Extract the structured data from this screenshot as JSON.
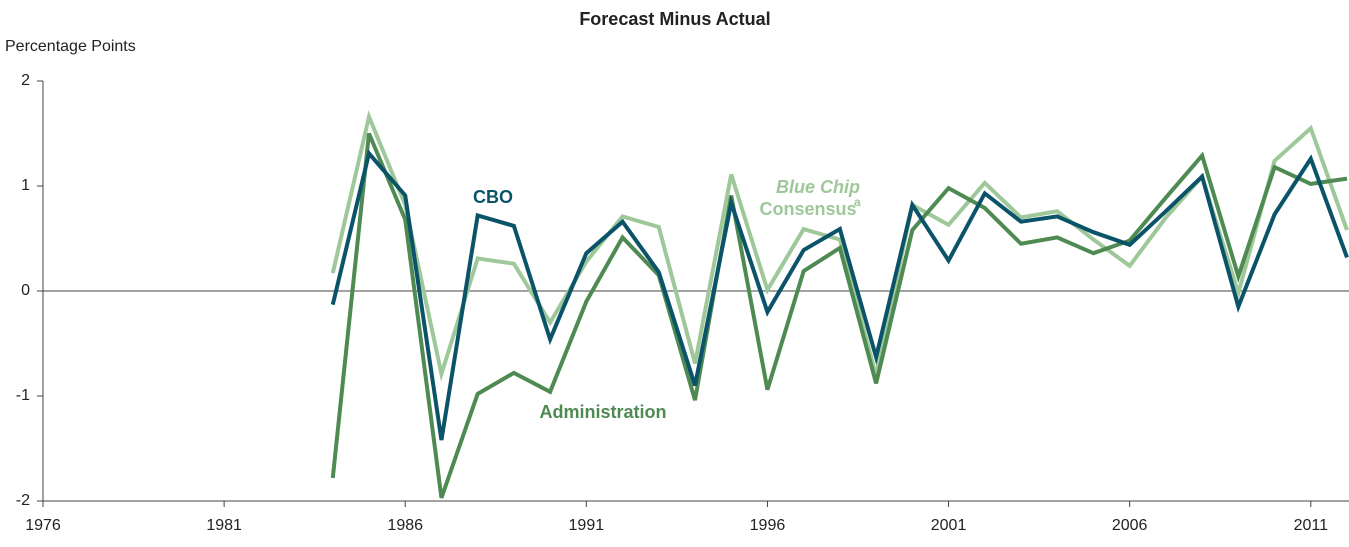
{
  "chart_data": {
    "type": "line",
    "title": "Forecast Minus Actual",
    "y_label": "Percentage Points",
    "x": [
      1984,
      1985,
      1986,
      1987,
      1988,
      1989,
      1990,
      1991,
      1992,
      1993,
      1994,
      1995,
      1996,
      1997,
      1998,
      1999,
      2000,
      2001,
      2002,
      2003,
      2004,
      2005,
      2006,
      2007,
      2008,
      2009,
      2010,
      2011,
      2012
    ],
    "series": [
      {
        "name": "CBO",
        "color": "#0b5369",
        "values": [
          -0.13,
          1.31,
          0.91,
          -1.42,
          0.72,
          0.62,
          -0.46,
          0.36,
          0.66,
          0.18,
          -0.9,
          0.84,
          -0.2,
          0.39,
          0.59,
          -0.63,
          0.82,
          0.29,
          0.93,
          0.66,
          0.71,
          0.56,
          0.44,
          0.76,
          1.09,
          -0.15,
          0.73,
          1.26,
          0.32
        ]
      },
      {
        "name": "Administration",
        "color": "#4e8a52",
        "values": [
          -1.78,
          1.5,
          0.68,
          -1.97,
          -0.98,
          -0.78,
          -0.96,
          -0.1,
          0.51,
          0.15,
          -1.04,
          0.91,
          -0.94,
          0.19,
          0.41,
          -0.88,
          0.58,
          0.98,
          0.79,
          0.45,
          0.51,
          0.36,
          0.48,
          0.89,
          1.29,
          0.14,
          1.18,
          1.02,
          1.07
        ]
      },
      {
        "name": "Consensus",
        "name_italic": "Blue Chip",
        "footnote": "a",
        "color": "#9ec89a",
        "values": [
          0.17,
          1.66,
          0.82,
          -0.79,
          0.31,
          0.26,
          -0.3,
          0.28,
          0.71,
          0.61,
          -0.69,
          1.11,
          0.01,
          0.59,
          0.49,
          -0.81,
          0.82,
          0.63,
          1.03,
          0.7,
          0.76,
          0.49,
          0.24,
          0.7,
          1.09,
          -0.02,
          1.24,
          1.55,
          0.58
        ]
      }
    ],
    "xlim": [
      1976,
      2012
    ],
    "xticks": [
      1976,
      1981,
      1986,
      1991,
      1996,
      2001,
      2006,
      2011
    ],
    "ylim": [
      -2,
      2
    ],
    "yticks": [
      -2,
      -1,
      0,
      1,
      2
    ]
  }
}
